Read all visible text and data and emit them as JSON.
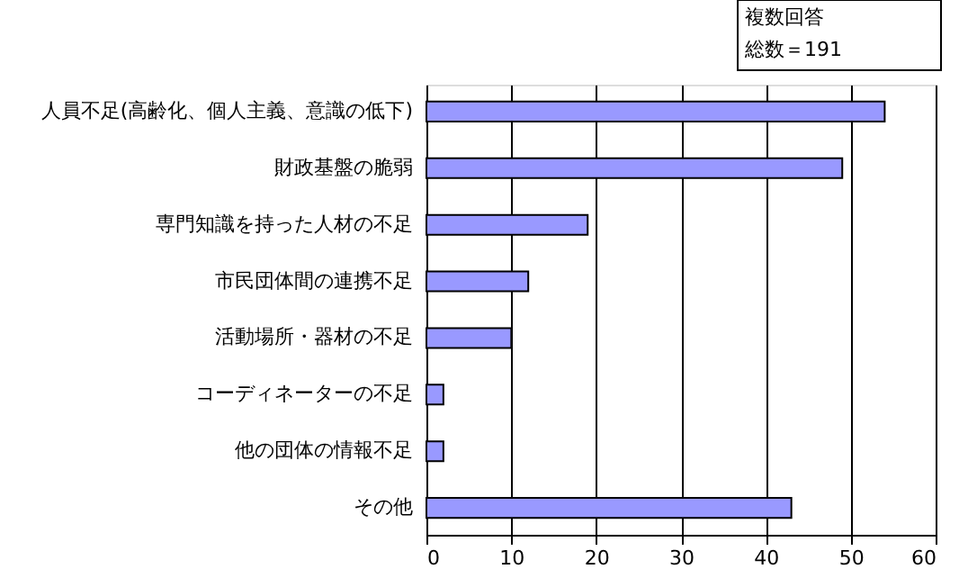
{
  "chart_data": {
    "type": "bar",
    "orientation": "horizontal",
    "categories": [
      "人員不足(高齢化、個人主義、意識の低下)",
      "財政基盤の脆弱",
      "専門知識を持った人材の不足",
      "市民団体間の連携不足",
      "活動場所・器材の不足",
      "コーディネーターの不足",
      "他の団体の情報不足",
      "その他"
    ],
    "values": [
      54,
      49,
      19,
      12,
      10,
      2,
      2,
      43
    ],
    "color": "#9999ff",
    "xlim": [
      0,
      60
    ],
    "xticks": [
      0,
      10,
      20,
      30,
      40,
      50,
      60
    ],
    "grid": "x",
    "annotations": [
      "複数回答",
      "総数＝191"
    ]
  }
}
